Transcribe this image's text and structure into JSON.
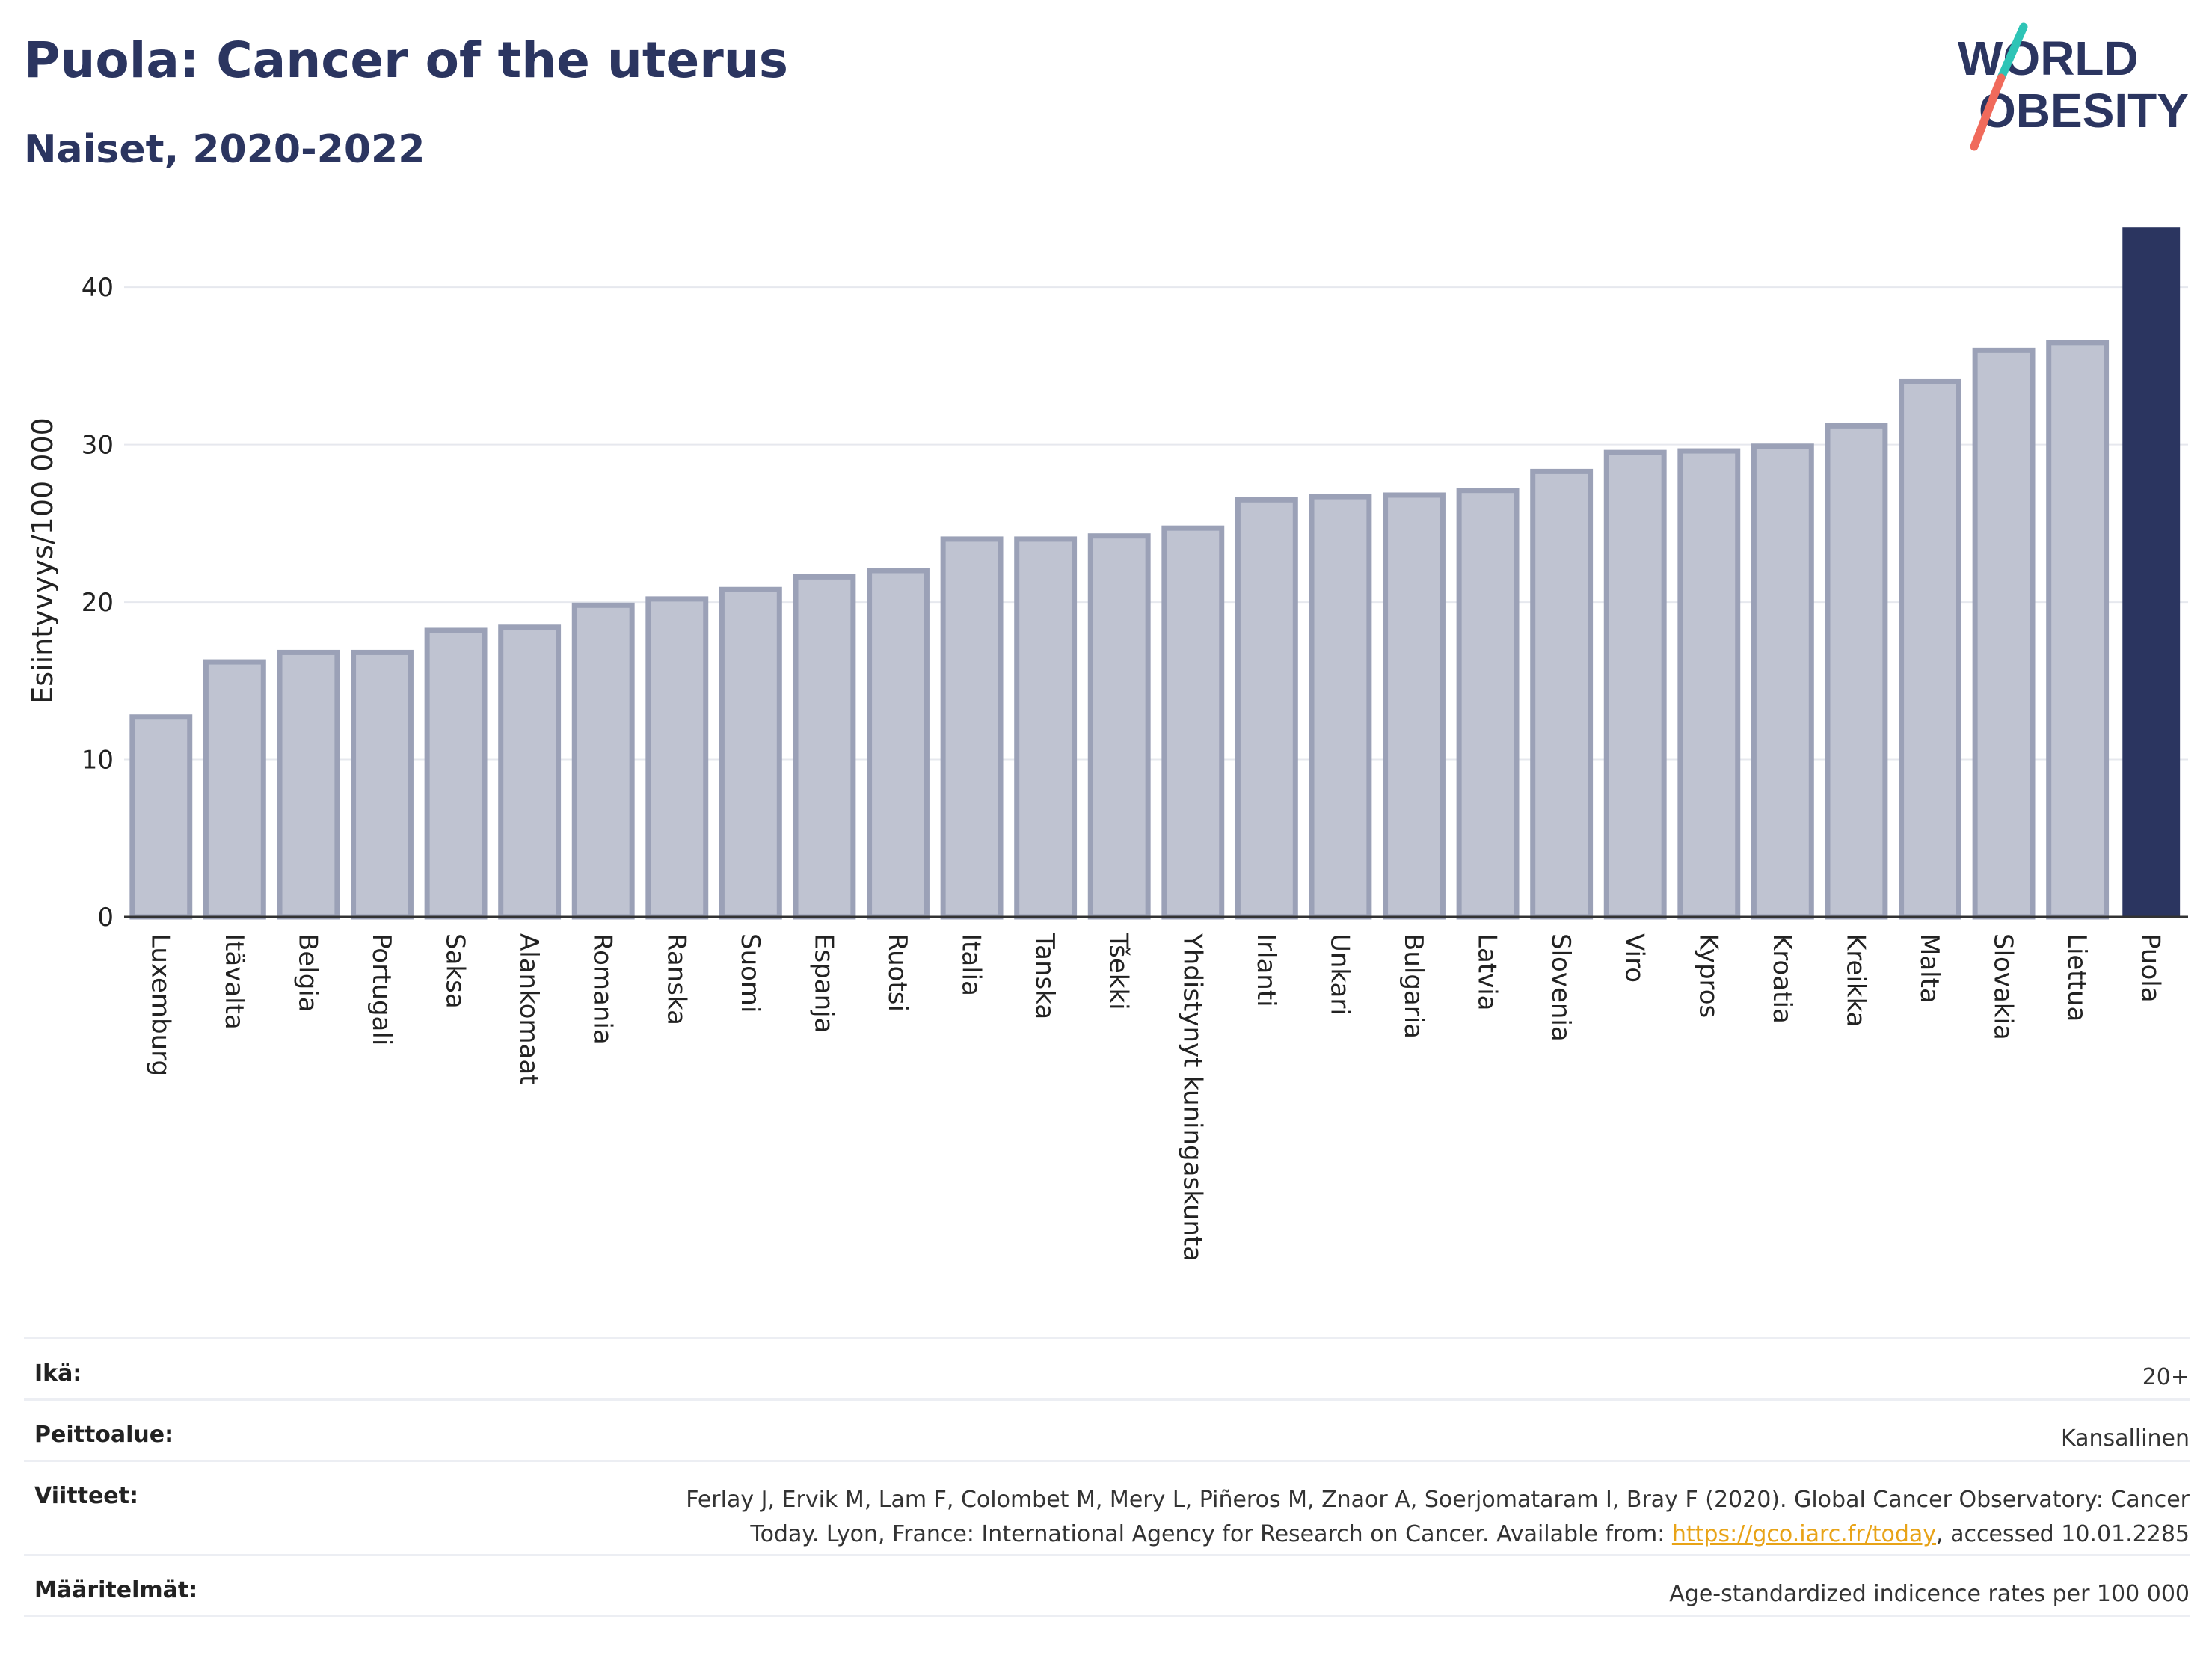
{
  "header": {
    "title": "Puola: Cancer of the uterus",
    "subtitle": "Naiset, 2020-2022"
  },
  "logo": {
    "line1": "WORLD",
    "line2": "OBESITY"
  },
  "colors": {
    "bar": "#bfc3d1",
    "bar_edge": "#9ba1b7",
    "highlight": "#2b3560",
    "grid": "#e6e8ee"
  },
  "chart_data": {
    "type": "bar",
    "ylabel": "Esiintyvyys/100 000",
    "ylim": [
      0,
      44
    ],
    "yticks": [
      0,
      10,
      20,
      30,
      40
    ],
    "grid": true,
    "highlight": "Puola",
    "categories": [
      "Luxemburg",
      "Itävalta",
      "Belgia",
      "Portugali",
      "Saksa",
      "Alankomaat",
      "Romania",
      "Ranska",
      "Suomi",
      "Espanja",
      "Ruotsi",
      "Italia",
      "Tanska",
      "Tšekki",
      "Yhdistynyt kuningaskunta",
      "Irlanti",
      "Unkari",
      "Bulgaria",
      "Latvia",
      "Slovenia",
      "Viro",
      "Kypros",
      "Kroatia",
      "Kreikka",
      "Malta",
      "Slovakia",
      "Liettua",
      "Puola"
    ],
    "values": [
      12.7,
      16.2,
      16.8,
      16.8,
      18.2,
      18.4,
      19.8,
      20.2,
      20.8,
      21.6,
      22.0,
      24.0,
      24.0,
      24.2,
      24.7,
      26.5,
      26.7,
      26.8,
      27.1,
      28.3,
      29.5,
      29.6,
      29.9,
      31.2,
      34.0,
      36.0,
      36.5,
      43.8
    ]
  },
  "meta": {
    "age": {
      "key": "Ikä:",
      "value": "20+"
    },
    "coverage": {
      "key": "Peittoalue:",
      "value": "Kansallinen"
    },
    "references": {
      "key": "Viitteet:",
      "text_before": "Ferlay J, Ervik M, Lam F, Colombet M, Mery L, Piñeros M, Znaor A, Soerjomataram I, Bray F (2020). Global Cancer Observatory: Cancer Today. Lyon, France: International Agency for Research on Cancer. Available from: ",
      "link": "https://gco.iarc.fr/today",
      "text_after": ", accessed 10.01.2285"
    },
    "definitions": {
      "key": "Määritelmät:",
      "value": "Age-standardized indicence rates per 100 000"
    }
  }
}
